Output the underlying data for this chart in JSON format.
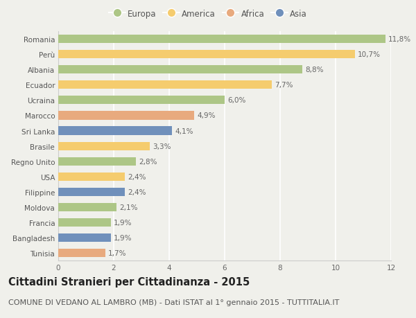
{
  "countries": [
    "Romania",
    "Perù",
    "Albania",
    "Ecuador",
    "Ucraina",
    "Marocco",
    "Sri Lanka",
    "Brasile",
    "Regno Unito",
    "USA",
    "Filippine",
    "Moldova",
    "Francia",
    "Bangladesh",
    "Tunisia"
  ],
  "values": [
    11.8,
    10.7,
    8.8,
    7.7,
    6.0,
    4.9,
    4.1,
    3.3,
    2.8,
    2.4,
    2.4,
    2.1,
    1.9,
    1.9,
    1.7
  ],
  "continents": [
    "Europa",
    "America",
    "Europa",
    "America",
    "Europa",
    "Africa",
    "Asia",
    "America",
    "Europa",
    "America",
    "Asia",
    "Europa",
    "Europa",
    "Asia",
    "Africa"
  ],
  "colors": {
    "Europa": "#adc686",
    "America": "#f5cc6e",
    "Africa": "#e8aa7e",
    "Asia": "#7090bb"
  },
  "legend_order": [
    "Europa",
    "America",
    "Africa",
    "Asia"
  ],
  "xlim": [
    0,
    12
  ],
  "xticks": [
    0,
    2,
    4,
    6,
    8,
    10,
    12
  ],
  "title": "Cittadini Stranieri per Cittadinanza - 2015",
  "subtitle": "COMUNE DI VEDANO AL LAMBRO (MB) - Dati ISTAT al 1° gennaio 2015 - TUTTITALIA.IT",
  "background_color": "#f0f0eb",
  "bar_height": 0.55,
  "title_fontsize": 10.5,
  "subtitle_fontsize": 8,
  "label_fontsize": 7.5,
  "tick_fontsize": 7.5,
  "legend_fontsize": 8.5
}
